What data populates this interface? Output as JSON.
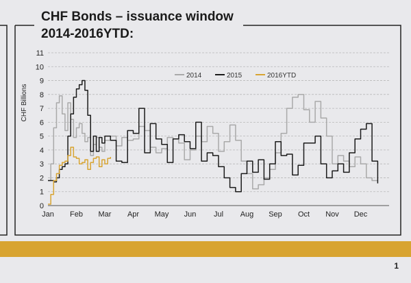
{
  "title_line1": "CHF Bonds – issuance window",
  "title_line2": "2014-2016YTD:",
  "page_number": "1",
  "colors": {
    "s2014": "#a9a9a9",
    "s2015": "#1a1a1a",
    "s2016": "#d8a431",
    "band": "#d8a431",
    "frame": "#222222",
    "grid": "#b8b8b8"
  },
  "chart_data": {
    "type": "line",
    "ylabel": "CHF Billions",
    "xlabel": "",
    "ylim": [
      0,
      11
    ],
    "yticks": [
      0,
      1,
      2,
      3,
      4,
      5,
      6,
      7,
      8,
      9,
      10,
      11
    ],
    "x_categories": [
      "Jan",
      "Feb",
      "Mar",
      "Apr",
      "May",
      "Jun",
      "Jul",
      "Aug",
      "Sep",
      "Oct",
      "Nov",
      "Dec"
    ],
    "grid": "horizontal",
    "legend_position": "top-center",
    "series": [
      {
        "name": "2014",
        "color": "#a9a9a9",
        "x": [
          0.0,
          0.1,
          0.2,
          0.3,
          0.4,
          0.5,
          0.6,
          0.7,
          0.8,
          0.9,
          1.0,
          1.1,
          1.2,
          1.3,
          1.4,
          1.5,
          1.6,
          1.7,
          1.8,
          1.9,
          2.0,
          2.2,
          2.4,
          2.6,
          2.8,
          3.0,
          3.2,
          3.4,
          3.6,
          3.8,
          4.0,
          4.2,
          4.4,
          4.6,
          4.8,
          5.0,
          5.2,
          5.4,
          5.6,
          5.8,
          6.0,
          6.2,
          6.4,
          6.6,
          6.8,
          7.0,
          7.2,
          7.4,
          7.6,
          7.8,
          8.0,
          8.2,
          8.4,
          8.6,
          8.8,
          9.0,
          9.2,
          9.4,
          9.6,
          9.8,
          10.0,
          10.2,
          10.4,
          10.6,
          10.8,
          11.0,
          11.2,
          11.4,
          11.6
        ],
        "y": [
          1.8,
          3.0,
          5.6,
          7.4,
          7.9,
          6.6,
          5.4,
          7.4,
          6.2,
          4.9,
          5.6,
          5.9,
          5.2,
          4.6,
          4.9,
          3.6,
          4.4,
          4.9,
          4.2,
          3.9,
          4.7,
          5.0,
          4.3,
          4.9,
          4.7,
          4.8,
          5.7,
          5.4,
          4.2,
          3.8,
          4.1,
          4.9,
          4.8,
          4.5,
          3.3,
          4.0,
          5.0,
          4.6,
          5.7,
          5.2,
          3.9,
          4.6,
          5.8,
          4.7,
          3.2,
          2.3,
          1.2,
          1.5,
          2.0,
          2.6,
          3.8,
          5.2,
          7.0,
          7.8,
          8.0,
          6.9,
          6.0,
          7.5,
          6.3,
          5.0,
          3.0,
          3.6,
          3.2,
          2.8,
          3.5,
          3.0,
          2.0,
          1.8,
          1.8
        ]
      },
      {
        "name": "2015",
        "color": "#1a1a1a",
        "x": [
          0.0,
          0.1,
          0.2,
          0.3,
          0.4,
          0.5,
          0.6,
          0.7,
          0.8,
          0.9,
          1.0,
          1.1,
          1.2,
          1.3,
          1.4,
          1.5,
          1.6,
          1.7,
          1.8,
          1.9,
          2.0,
          2.2,
          2.4,
          2.6,
          2.8,
          3.0,
          3.2,
          3.4,
          3.6,
          3.8,
          4.0,
          4.2,
          4.4,
          4.6,
          4.8,
          5.0,
          5.2,
          5.4,
          5.6,
          5.8,
          6.0,
          6.2,
          6.4,
          6.6,
          6.8,
          7.0,
          7.2,
          7.4,
          7.6,
          7.8,
          8.0,
          8.2,
          8.4,
          8.6,
          8.8,
          9.0,
          9.2,
          9.4,
          9.6,
          9.8,
          10.0,
          10.2,
          10.4,
          10.6,
          10.8,
          11.0,
          11.2,
          11.4,
          11.6
        ],
        "y": [
          1.8,
          1.8,
          1.7,
          2.0,
          2.6,
          2.8,
          3.0,
          5.0,
          6.6,
          7.8,
          8.4,
          8.7,
          9.0,
          8.3,
          6.5,
          3.9,
          5.0,
          3.9,
          4.9,
          4.5,
          5.0,
          4.7,
          3.2,
          3.1,
          5.4,
          5.2,
          7.0,
          3.8,
          5.9,
          4.8,
          4.4,
          3.1,
          4.8,
          5.1,
          4.6,
          4.1,
          6.0,
          3.2,
          3.8,
          3.6,
          2.8,
          2.0,
          1.3,
          1.0,
          2.3,
          3.2,
          2.4,
          3.3,
          1.9,
          3.0,
          4.6,
          3.6,
          3.7,
          2.2,
          2.9,
          4.5,
          4.5,
          5.0,
          3.0,
          2.0,
          2.5,
          3.0,
          2.4,
          3.8,
          4.8,
          5.5,
          5.9,
          3.2,
          1.6
        ]
      },
      {
        "name": "2016YTD",
        "color": "#d8a431",
        "x": [
          0.0,
          0.1,
          0.2,
          0.3,
          0.4,
          0.5,
          0.6,
          0.7,
          0.8,
          0.9,
          1.0,
          1.1,
          1.2,
          1.3,
          1.4,
          1.5,
          1.6,
          1.7,
          1.8,
          1.9,
          2.0,
          2.1,
          2.2
        ],
        "y": [
          0.1,
          0.8,
          1.8,
          2.3,
          2.9,
          3.1,
          3.2,
          3.6,
          4.2,
          3.5,
          3.4,
          3.0,
          3.1,
          3.3,
          2.6,
          3.1,
          3.4,
          3.5,
          2.8,
          3.3,
          3.0,
          3.4,
          3.5
        ]
      }
    ]
  }
}
